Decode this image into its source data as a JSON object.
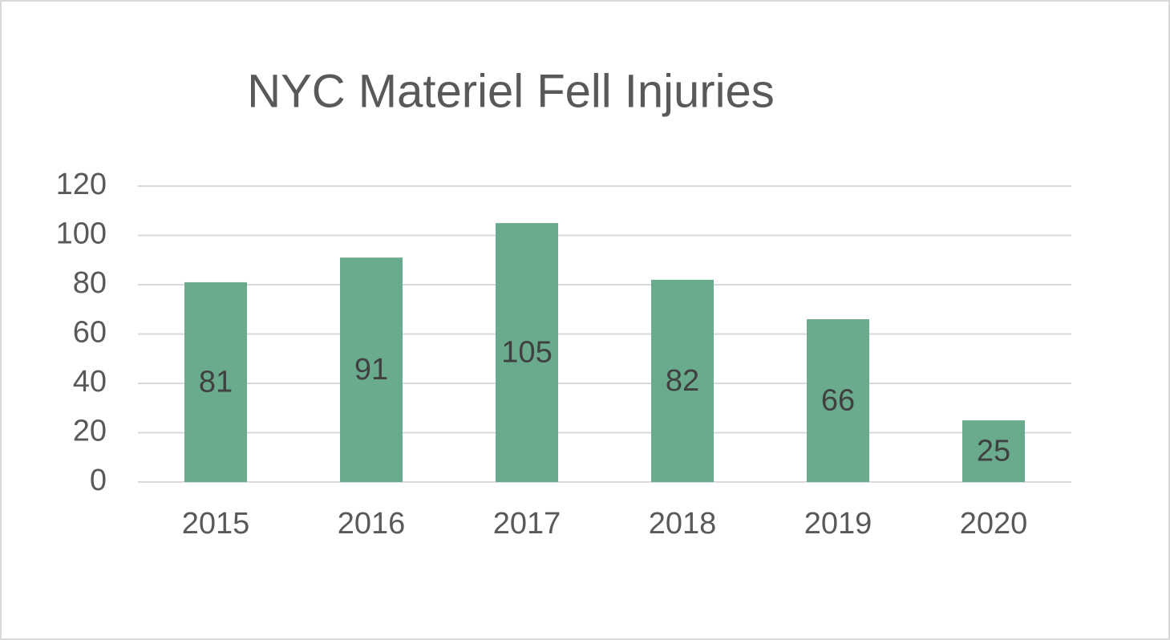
{
  "chart_data": {
    "type": "bar",
    "title": "NYC Materiel Fell Injuries",
    "categories": [
      "2015",
      "2016",
      "2017",
      "2018",
      "2019",
      "2020"
    ],
    "values": [
      81,
      91,
      105,
      82,
      66,
      25
    ],
    "color": "#6aab8e",
    "ylim": [
      0,
      120
    ],
    "yticks": [
      0,
      20,
      40,
      60,
      80,
      100,
      120
    ],
    "grid": true
  }
}
